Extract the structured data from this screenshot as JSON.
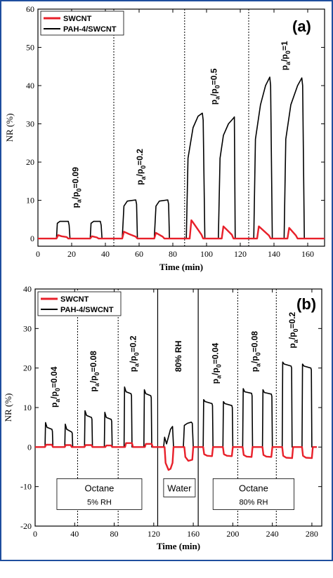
{
  "frame_color": "#1f4e9e",
  "chart_data": [
    {
      "type": "line",
      "panel_label": "(a)",
      "xlabel": "Time (min)",
      "ylabel": "NR (%)",
      "xlim": [
        0,
        170
      ],
      "ylim": [
        -2,
        60
      ],
      "xticks": [
        0,
        20,
        40,
        60,
        80,
        100,
        120,
        140,
        160
      ],
      "yticks": [
        0,
        10,
        20,
        30,
        40,
        50,
        60
      ],
      "legend": {
        "placement": "top-left",
        "entries": [
          "SWCNT",
          "PAH-4/SWCNT"
        ]
      },
      "series": [
        {
          "name": "SWCNT",
          "color": "#e8202a",
          "x": [
            0,
            11,
            12,
            14,
            17,
            18,
            31,
            32,
            35,
            36,
            50,
            51,
            54,
            58,
            59,
            69,
            70,
            74,
            75,
            90,
            91,
            92,
            97,
            98,
            109,
            110,
            115,
            116,
            130,
            131,
            132,
            137,
            138,
            148,
            149,
            153,
            154,
            165,
            170
          ],
          "y": [
            0,
            0,
            0.9,
            0.6,
            0.4,
            0,
            0,
            0.6,
            0.3,
            0,
            0,
            1.8,
            1.2,
            0.5,
            0,
            0,
            1.5,
            0.5,
            0,
            0,
            4.8,
            4.2,
            1,
            0,
            0,
            3.2,
            1,
            0,
            0,
            3.2,
            2.8,
            0.8,
            0,
            0,
            2.8,
            0.8,
            0,
            0,
            0
          ]
        },
        {
          "name": "PAH-4/SWCNT",
          "color": "#000000",
          "x": [
            0,
            11,
            11.5,
            13,
            18,
            18.5,
            19,
            31,
            31.5,
            33,
            37,
            37.5,
            38,
            50,
            51,
            53,
            58,
            58.5,
            59,
            69,
            70,
            72,
            77,
            77.5,
            78,
            88,
            89,
            92,
            95,
            97.5,
            98,
            99,
            107,
            108,
            110,
            113,
            116,
            116.5,
            117,
            128,
            129,
            132,
            135,
            137.5,
            138,
            139,
            146,
            147,
            150,
            154,
            156.5,
            157,
            158,
            170
          ],
          "y": [
            0,
            0,
            4,
            4.5,
            4.5,
            3.5,
            0,
            0,
            4,
            4.5,
            4.5,
            3.5,
            0,
            0,
            8.5,
            9.8,
            10.1,
            9,
            0,
            0,
            8.5,
            9.8,
            10.1,
            9,
            0,
            0,
            21,
            29,
            32,
            32.8,
            31,
            0,
            0,
            21,
            27,
            30,
            31.5,
            31.8,
            0,
            0,
            26,
            35,
            40,
            42.2,
            40,
            0,
            0,
            26,
            35,
            40,
            42,
            40,
            0,
            0
          ]
        }
      ],
      "dividers": [
        45,
        87,
        125
      ],
      "annotations": [
        {
          "text_sub": "a",
          "text_sub2": "0",
          "value": "=0.09",
          "x": 24,
          "y": 8
        },
        {
          "text_sub": "a",
          "text_sub2": "0",
          "value": "=0.2",
          "x": 62,
          "y": 14
        },
        {
          "text_sub": "a",
          "text_sub2": "0",
          "value": "=0.5",
          "x": 106,
          "y": 35
        },
        {
          "text_sub": "a",
          "text_sub2": "0",
          "value": "=1",
          "x": 148,
          "y": 44
        }
      ]
    },
    {
      "type": "line",
      "panel_label": "(b)",
      "xlabel": "Time (min)",
      "ylabel": "NR (%)",
      "xlim": [
        0,
        290
      ],
      "ylim": [
        -20,
        40
      ],
      "xticks": [
        0,
        40,
        80,
        120,
        160,
        200,
        240,
        280
      ],
      "yticks": [
        -20,
        -10,
        0,
        10,
        20,
        30,
        40
      ],
      "legend": {
        "placement": "top-left",
        "entries": [
          "SWCNT",
          "PAH-4/SWCNT"
        ]
      },
      "series": [
        {
          "name": "SWCNT",
          "color": "#e8202a",
          "x": [
            0,
            10,
            11,
            17,
            18,
            30,
            31,
            36,
            37,
            50,
            51,
            57,
            58,
            71,
            72,
            77,
            78,
            91,
            92,
            98,
            99,
            111,
            112,
            118,
            119,
            131,
            132,
            135,
            137,
            139,
            140,
            151,
            152,
            155,
            159,
            160,
            170,
            171,
            174,
            179,
            180,
            190,
            191,
            194,
            199,
            200,
            210,
            211,
            214,
            219,
            220,
            230,
            231,
            234,
            239,
            240,
            250,
            251,
            254,
            260,
            261,
            270,
            271,
            274,
            280,
            281,
            285
          ],
          "y": [
            0,
            0,
            0.6,
            0.6,
            0,
            0,
            0.5,
            0.5,
            0,
            0,
            0.5,
            0.5,
            0,
            0,
            0.4,
            0.4,
            0,
            0,
            1,
            1,
            0,
            0,
            0.8,
            0.8,
            0,
            0,
            -4,
            -5.8,
            -5.5,
            -4,
            0,
            0,
            -2.5,
            -3.5,
            -3.2,
            0,
            0,
            -1.8,
            -2.2,
            -2.3,
            0,
            0,
            -1.8,
            -2.2,
            -2.3,
            0,
            0,
            -2,
            -2.4,
            -2.5,
            0,
            0,
            -2,
            -2.4,
            -2.5,
            0,
            0,
            -2.2,
            -2.7,
            -2.8,
            0,
            0,
            -2.2,
            -2.7,
            -2.8,
            0,
            0
          ]
        },
        {
          "name": "PAH-4/SWCNT",
          "color": "#000000",
          "x": [
            0,
            10,
            10.5,
            12,
            17,
            17.5,
            18,
            30,
            30.5,
            32,
            37,
            37.5,
            38,
            50,
            50.5,
            52,
            57,
            57.5,
            58,
            70,
            70.5,
            72,
            77,
            77.5,
            78,
            90,
            90.5,
            92,
            97,
            97.5,
            98,
            110,
            110.5,
            112,
            117,
            117.5,
            118,
            130,
            131,
            133,
            137,
            139,
            140,
            150,
            151,
            154,
            158,
            159,
            160,
            170,
            170.5,
            172,
            179,
            179.5,
            180,
            190,
            190.5,
            192,
            199,
            199.5,
            200,
            210,
            210.5,
            212,
            219,
            219.5,
            220,
            230,
            230.5,
            232,
            239,
            239.5,
            240,
            250,
            250.5,
            252,
            259,
            259.5,
            260,
            270,
            270.5,
            272,
            279,
            279.5,
            280,
            285
          ],
          "y": [
            0,
            0,
            6.2,
            5,
            4.5,
            4,
            0,
            0,
            5.8,
            4.5,
            3.8,
            3.5,
            0,
            0,
            9.2,
            8,
            7.5,
            7,
            0,
            0,
            8.8,
            7.5,
            7,
            6.5,
            0,
            0,
            15.2,
            14,
            13.5,
            13,
            0,
            0,
            14.5,
            13.5,
            13,
            12.5,
            0,
            0,
            2.5,
            0.8,
            4.5,
            5.2,
            0,
            0,
            5.5,
            6,
            6.3,
            6,
            0,
            0,
            12,
            11.5,
            11,
            10.5,
            0,
            0,
            11.5,
            11,
            10.5,
            10,
            0,
            0,
            14.8,
            14,
            13.6,
            13,
            0,
            0,
            14.5,
            13.8,
            13.4,
            12.8,
            0,
            0,
            21.5,
            21,
            20.5,
            20,
            0,
            0,
            21,
            20.5,
            20,
            19.5,
            0,
            0
          ]
        }
      ],
      "dividers_dotted": [
        43,
        84,
        205,
        244
      ],
      "dividers_solid": [
        124,
        165
      ],
      "annotations": [
        {
          "value": "=0.04",
          "x": 22,
          "y": 10
        },
        {
          "value": "=0.08",
          "x": 62,
          "y": 14
        },
        {
          "value": "=0.2",
          "x": 102,
          "y": 19
        },
        {
          "value": "80% RH",
          "x": 148,
          "y": 19
        },
        {
          "value": "=0.04",
          "x": 185,
          "y": 16
        },
        {
          "value": "=0.08",
          "x": 225,
          "y": 19
        },
        {
          "value": "=0.2",
          "x": 263,
          "y": 25
        }
      ],
      "boxes": [
        {
          "title": "Octane",
          "subtitle": "5% RH",
          "x0": 22,
          "x1": 108,
          "y": -8
        },
        {
          "title": "Water",
          "subtitle": "",
          "x0": 130,
          "x1": 162,
          "y": -8
        },
        {
          "title": "Octane",
          "subtitle": "80% RH",
          "x0": 180,
          "x1": 262,
          "y": -8
        }
      ]
    }
  ]
}
